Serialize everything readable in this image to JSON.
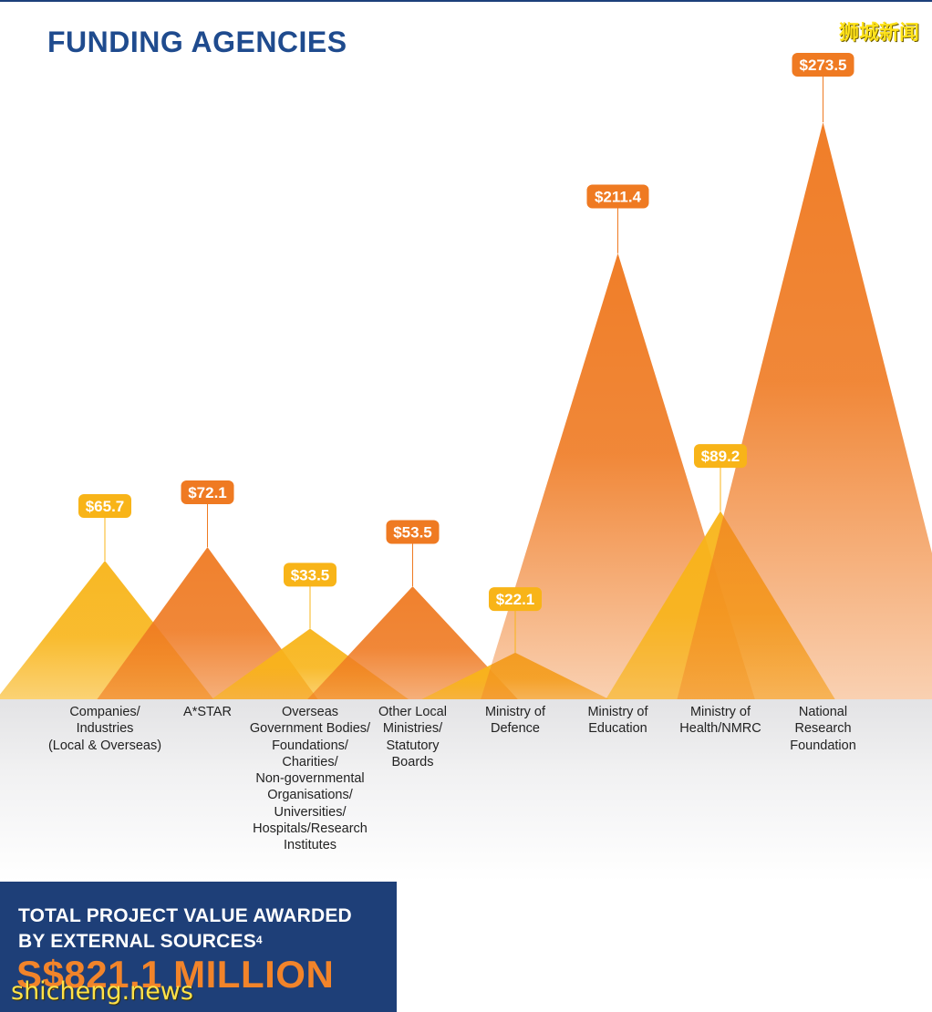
{
  "watermarks": {
    "top": "狮城新闻",
    "bottom": "shicheng.news"
  },
  "chart_data": {
    "type": "area",
    "title": "FUNDING AGENCIES",
    "value_prefix": "$",
    "categories": [
      "Companies/\nIndustries\n(Local & Overseas)",
      "A*STAR",
      "Overseas\nGovernment Bodies/\nFoundations/\nCharities/\nNon-governmental\nOrganisations/\nUniversities/\nHospitals/Research\nInstitutes",
      "Other Local\nMinistries/\nStatutory\nBoards",
      "Ministry of\nDefence",
      "Ministry of\nEducation",
      "Ministry of\nHealth/NMRC",
      "National\nResearch\nFoundation"
    ],
    "values": [
      65.7,
      72.1,
      33.5,
      53.5,
      22.1,
      211.4,
      89.2,
      273.5
    ],
    "value_labels": [
      "$65.7",
      "$72.1",
      "$33.5",
      "$53.5",
      "$22.1",
      "$211.4",
      "$89.2",
      "$273.5"
    ],
    "colors": [
      "#f8b418",
      "#ef7a22",
      "#f8b418",
      "#ef7a22",
      "#f8b418",
      "#ef7a22",
      "#f8b418",
      "#ef7a22"
    ],
    "xlabel": "",
    "ylabel": "",
    "grid": false,
    "legend": "none"
  },
  "total": {
    "label_line1": "TOTAL PROJECT VALUE AWARDED",
    "label_line2": "BY EXTERNAL SOURCES",
    "footnote": "4",
    "value": "S$821.1 MILLION"
  }
}
